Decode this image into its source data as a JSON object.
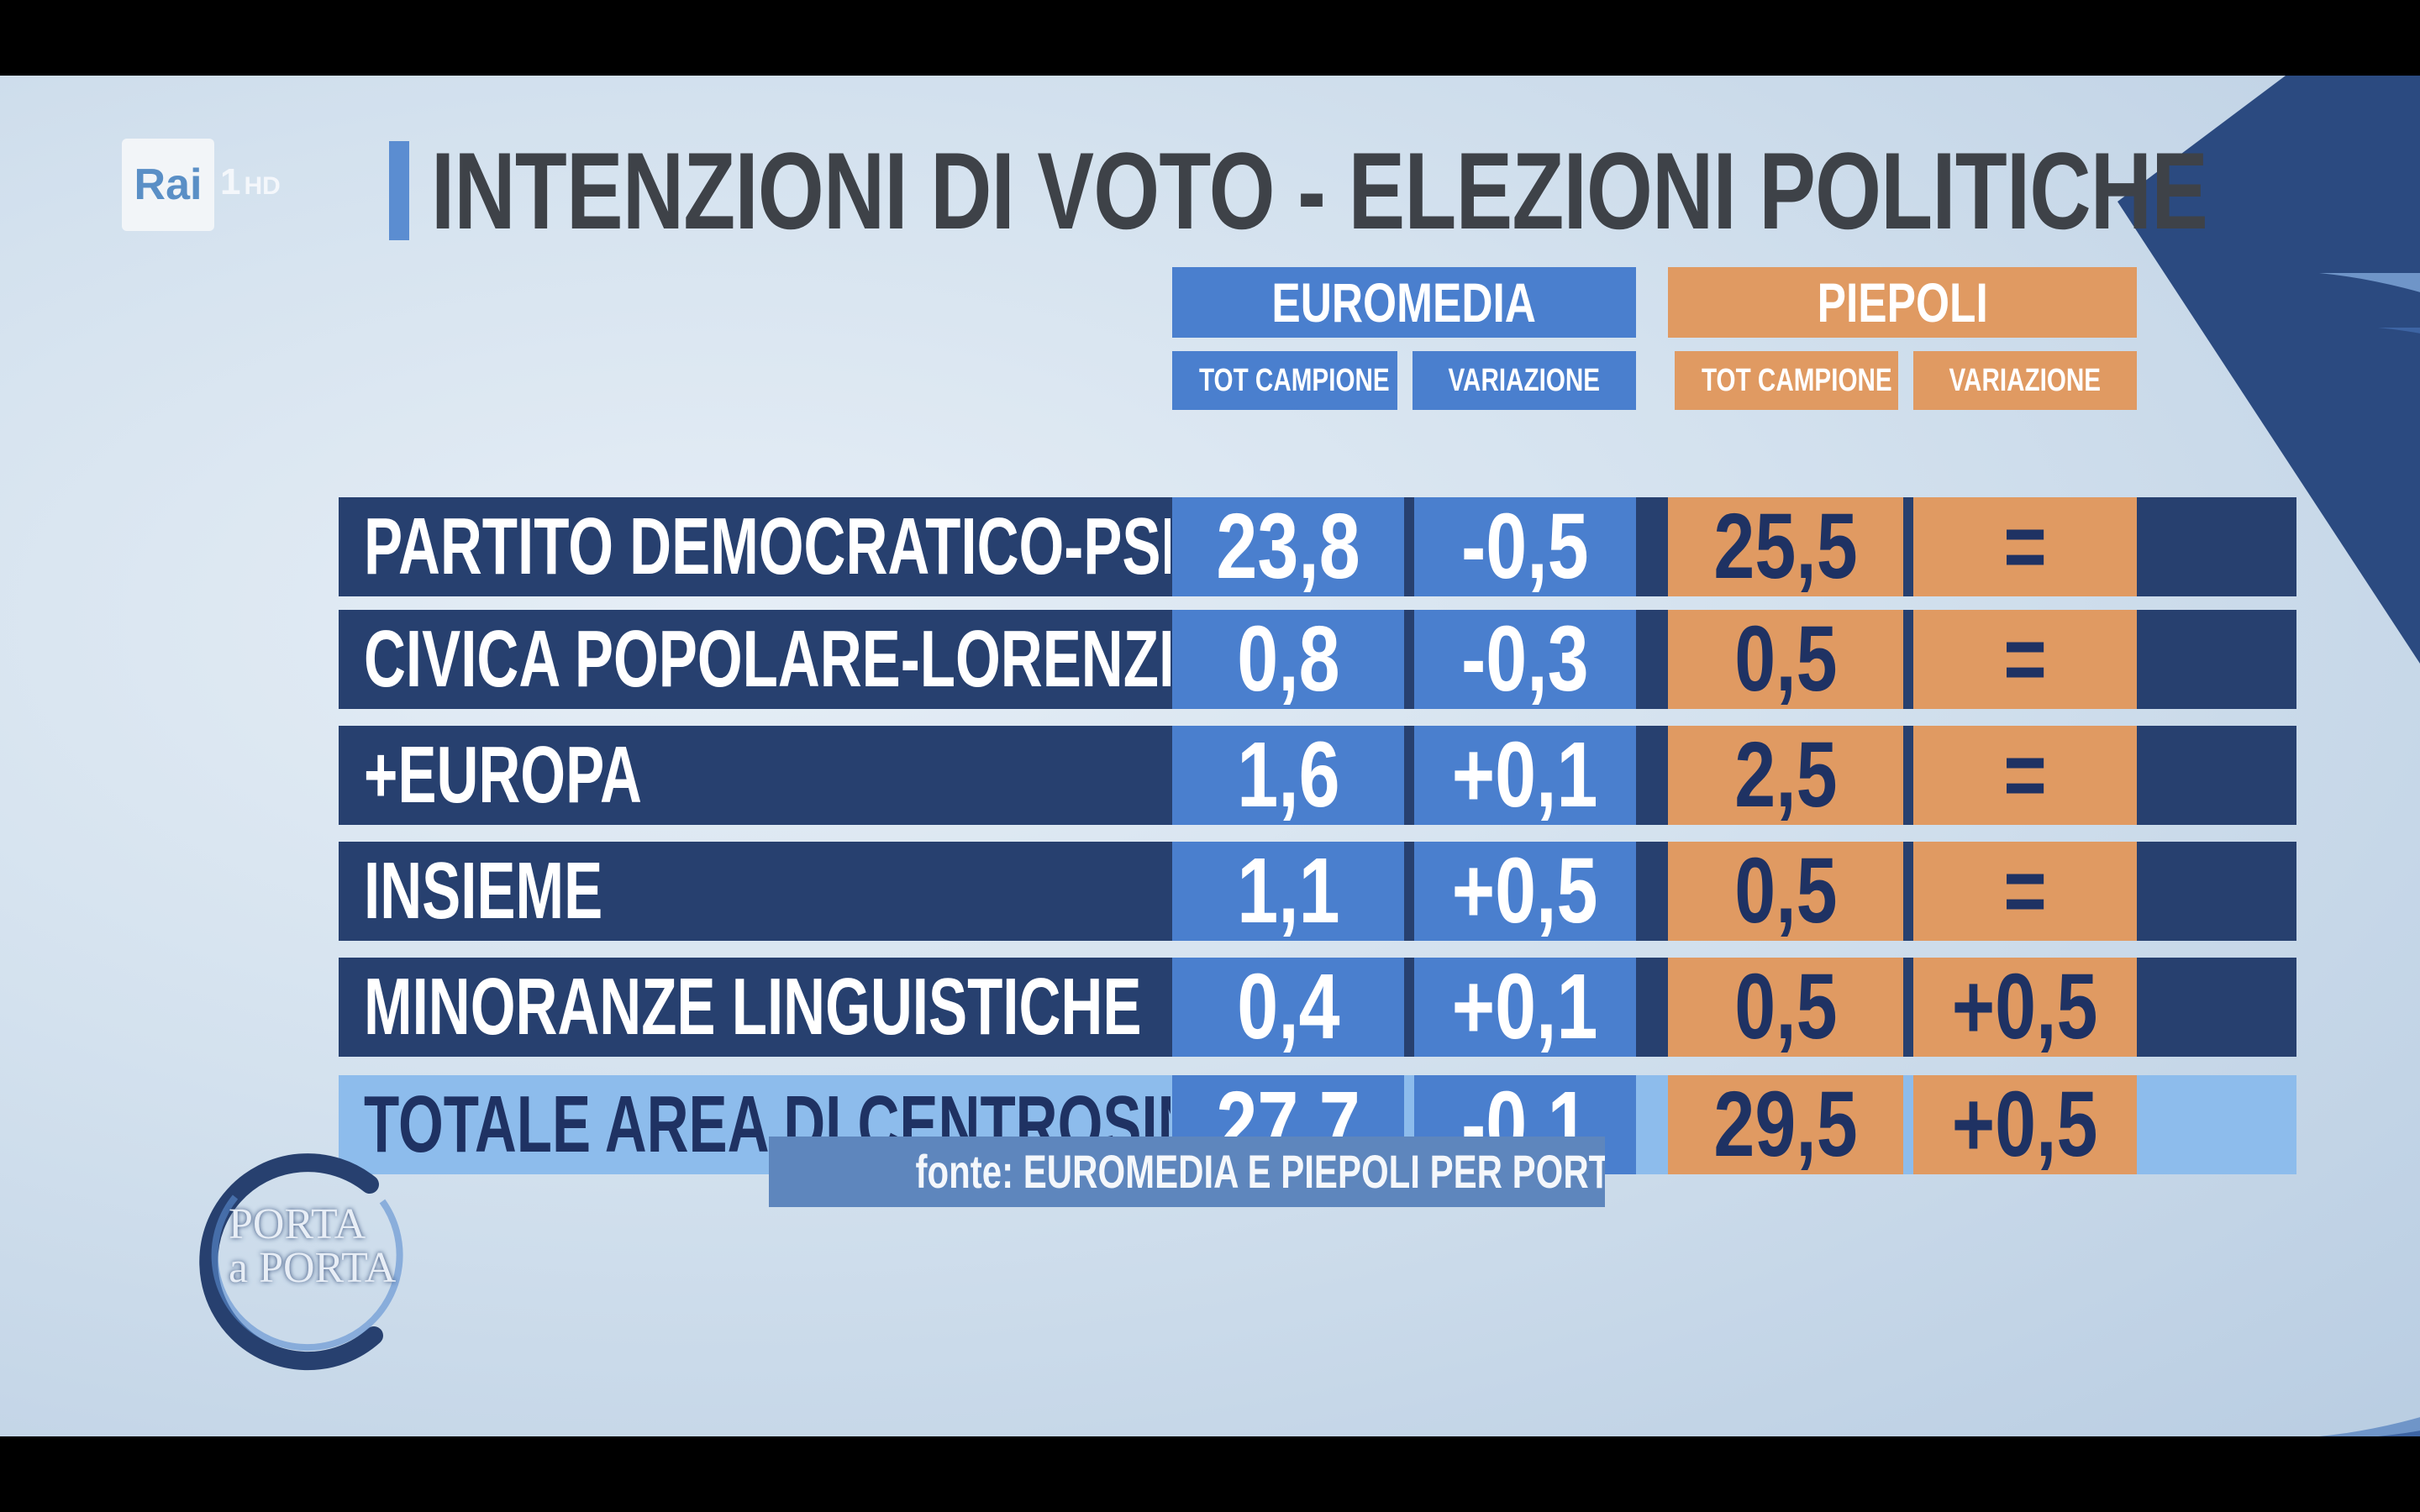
{
  "channel": {
    "brand": "Rai",
    "number": "1",
    "quality": "HD"
  },
  "title": "INTENZIONI DI VOTO - ELEZIONI POLITICHE",
  "pollsters": [
    {
      "name": "EUROMEDIA",
      "sub": [
        "TOT CAMPIONE",
        "VARIAZIONE"
      ],
      "color": "#4a7fce"
    },
    {
      "name": "PIEPOLI",
      "sub": [
        "TOT CAMPIONE",
        "VARIAZIONE"
      ],
      "color": "#e09a62"
    }
  ],
  "rows": [
    {
      "party": "PARTITO DEMOCRATICO-PSE",
      "euromedia_tot": "23,8",
      "euromedia_var": "-0,5",
      "piepoli_tot": "25,5",
      "piepoli_var": "="
    },
    {
      "party": "CIVICA POPOLARE-LORENZIN",
      "euromedia_tot": "0,8",
      "euromedia_var": "-0,3",
      "piepoli_tot": "0,5",
      "piepoli_var": "="
    },
    {
      "party": "+EUROPA",
      "euromedia_tot": "1,6",
      "euromedia_var": "+0,1",
      "piepoli_tot": "2,5",
      "piepoli_var": "="
    },
    {
      "party": "INSIEME",
      "euromedia_tot": "1,1",
      "euromedia_var": "+0,5",
      "piepoli_tot": "0,5",
      "piepoli_var": "="
    },
    {
      "party": "MINORANZE LINGUISTICHE",
      "euromedia_tot": "0,4",
      "euromedia_var": "+0,1",
      "piepoli_tot": "0,5",
      "piepoli_var": "+0,5"
    },
    {
      "party": "TOTALE AREA DI CENTROSINISTRA",
      "euromedia_tot": "27,7",
      "euromedia_var": "-0,1",
      "piepoli_tot": "29,5",
      "piepoli_var": "+0,5"
    }
  ],
  "source": "fonte: EUROMEDIA E PIEPOLI PER PORTA A PORTA",
  "show_logo": {
    "line1": "PORTA",
    "line2": "a PORTA"
  },
  "colors": {
    "row_dark": "#27406f",
    "row_total": "#8dbcec",
    "euromedia": "#4a7fce",
    "piepoli": "#e09a62",
    "piepoli_text": "#1f3263",
    "title": "#3e4248"
  }
}
